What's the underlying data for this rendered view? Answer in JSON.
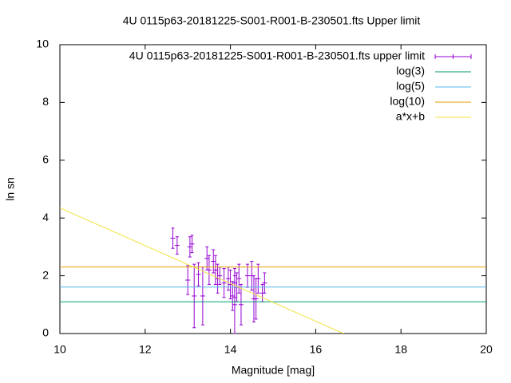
{
  "chart_data": {
    "type": "scatter",
    "title": "4U 0115p63-20181225-S001-R001-B-230501.fts Upper limit",
    "xlabel": "Magnitude [mag]",
    "ylabel": "ln sn",
    "xlim": [
      10,
      20
    ],
    "ylim": [
      0,
      10
    ],
    "xticks": [
      10,
      12,
      14,
      16,
      18,
      20
    ],
    "yticks": [
      0,
      2,
      4,
      6,
      8,
      10
    ],
    "legend": "top-right",
    "series": [
      {
        "name": "4U 0115p63-20181225-S001-R001-B-230501.fts upper limit",
        "style": "errorbars",
        "color": "#9400d3",
        "x": [
          12.65,
          12.75,
          13.0,
          13.05,
          13.1,
          13.15,
          13.25,
          13.35,
          13.45,
          13.5,
          13.6,
          13.65,
          13.7,
          13.75,
          13.85,
          13.95,
          14.0,
          14.05,
          14.1,
          14.1,
          14.15,
          14.2,
          14.25,
          14.4,
          14.5,
          14.55,
          14.6,
          14.65,
          14.75,
          14.8
        ],
        "values": [
          3.3,
          3.05,
          1.85,
          3.0,
          3.1,
          1.3,
          2.05,
          1.3,
          2.6,
          2.2,
          2.5,
          2.2,
          1.9,
          2.0,
          1.75,
          1.9,
          1.7,
          1.3,
          1.0,
          1.75,
          1.6,
          1.9,
          1.0,
          2.0,
          2.0,
          1.2,
          1.2,
          1.9,
          1.4,
          1.75
        ],
        "errors": [
          0.35,
          0.3,
          0.5,
          0.35,
          0.3,
          1.1,
          0.4,
          1.0,
          0.4,
          0.5,
          0.4,
          0.5,
          0.5,
          0.3,
          0.5,
          0.4,
          0.5,
          0.5,
          1.0,
          0.5,
          0.5,
          0.5,
          0.7,
          0.4,
          0.5,
          0.8,
          0.7,
          0.5,
          0.3,
          0.35
        ]
      },
      {
        "name": "log(3)",
        "style": "line",
        "color": "#009e73",
        "x": [
          10,
          20
        ],
        "values": [
          1.0986,
          1.0986
        ]
      },
      {
        "name": "log(5)",
        "style": "line",
        "color": "#56b4e9",
        "x": [
          10,
          20
        ],
        "values": [
          1.6094,
          1.6094
        ]
      },
      {
        "name": "log(10)",
        "style": "line",
        "color": "#e69f00",
        "x": [
          10,
          20
        ],
        "values": [
          2.3026,
          2.3026
        ]
      },
      {
        "name": "a*x+b",
        "style": "line",
        "color": "#f0e442",
        "x": [
          10,
          16.65
        ],
        "values": [
          4.35,
          0
        ]
      }
    ]
  }
}
